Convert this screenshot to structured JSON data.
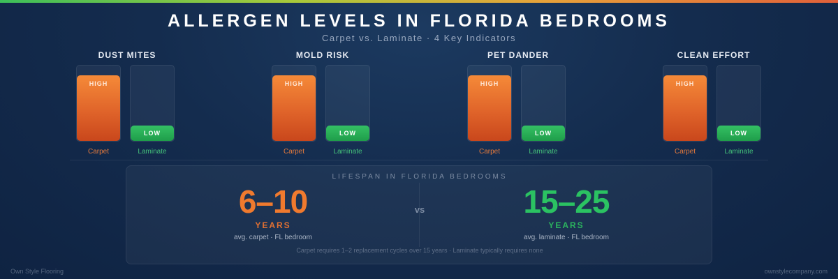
{
  "title": "ALLERGEN LEVELS IN FLORIDA BEDROOMS",
  "subtitle": "Carpet vs. Laminate · 4 Key Indicators",
  "colors": {
    "carpet": "#e0642a",
    "laminate": "#27ae55",
    "background": "#142c4e"
  },
  "chart_data": {
    "type": "bar",
    "title": "ALLERGEN LEVELS IN FLORIDA BEDROOMS",
    "subtitle": "Carpet vs. Laminate · 4 Key Indicators",
    "categories": [
      "DUST MITES",
      "MOLD RISK",
      "PET DANDER",
      "CLEAN EFFORT"
    ],
    "ylim": [
      0,
      1
    ],
    "series": [
      {
        "name": "Carpet",
        "level_label": "HIGH",
        "values": [
          0.85,
          0.85,
          0.85,
          0.85
        ]
      },
      {
        "name": "Laminate",
        "level_label": "LOW",
        "values": [
          0.2,
          0.2,
          0.2,
          0.2
        ]
      }
    ]
  },
  "lifespan": {
    "title": "LIFESPAN IN FLORIDA BEDROOMS",
    "vs": "vs",
    "carpet": {
      "value": "6–10",
      "unit": "YEARS",
      "desc": "avg. carpet · FL bedroom"
    },
    "laminate": {
      "value": "15–25",
      "unit": "YEARS",
      "desc": "avg. laminate · FL bedroom"
    },
    "note": "Carpet requires 1–2 replacement cycles over 15 years · Laminate typically requires none"
  },
  "footer": {
    "left": "Own Style Flooring",
    "right": "ownstylecompany.com"
  }
}
